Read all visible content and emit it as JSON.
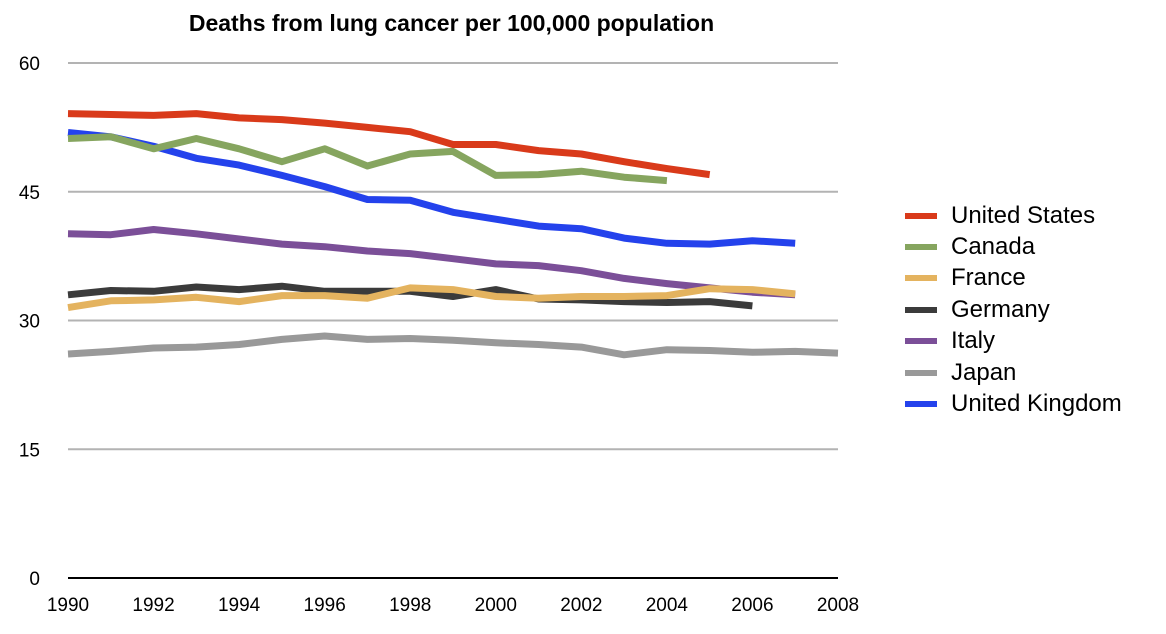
{
  "chart_data": {
    "type": "line",
    "title": "Deaths from lung cancer per 100,000 population",
    "xlabel": "",
    "ylabel": "",
    "xlim": [
      1990,
      2008
    ],
    "ylim": [
      0,
      60
    ],
    "x_ticks": [
      "1990",
      "1992",
      "1994",
      "1996",
      "1998",
      "2000",
      "2002",
      "2004",
      "2006",
      "2008"
    ],
    "y_ticks": [
      "0",
      "15",
      "30",
      "45",
      "60"
    ],
    "grid": true,
    "legend_position": "right",
    "series": [
      {
        "name": "United States",
        "color": "#d93a1a",
        "x": [
          1990,
          1991,
          1992,
          1993,
          1994,
          1995,
          1996,
          1997,
          1998,
          1999,
          2000,
          2001,
          2002,
          2003,
          2004,
          2005
        ],
        "y": [
          54.1,
          54.0,
          53.9,
          54.1,
          53.6,
          53.4,
          53.0,
          52.5,
          52.0,
          50.5,
          50.5,
          49.8,
          49.4,
          48.5,
          47.7,
          47.0
        ]
      },
      {
        "name": "Canada",
        "color": "#86a55f",
        "x": [
          1990,
          1991,
          1992,
          1993,
          1994,
          1995,
          1996,
          1997,
          1998,
          1999,
          2000,
          2001,
          2002,
          2003,
          2004
        ],
        "y": [
          51.2,
          51.4,
          50.0,
          51.2,
          50.0,
          48.5,
          50.0,
          48.0,
          49.4,
          49.7,
          46.9,
          47.0,
          47.4,
          46.7,
          46.3
        ]
      },
      {
        "name": "France",
        "color": "#e4b35f",
        "x": [
          1990,
          1991,
          1992,
          1993,
          1994,
          1995,
          1996,
          1997,
          1998,
          1999,
          2000,
          2001,
          2002,
          2003,
          2004,
          2005,
          2006,
          2007
        ],
        "y": [
          31.5,
          32.3,
          32.4,
          32.7,
          32.2,
          32.9,
          32.9,
          32.6,
          33.8,
          33.6,
          32.8,
          32.6,
          32.8,
          32.8,
          32.9,
          33.7,
          33.6,
          33.1
        ]
      },
      {
        "name": "Germany",
        "color": "#3b3b3b",
        "x": [
          1990,
          1991,
          1992,
          1993,
          1994,
          1995,
          1996,
          1997,
          1998,
          1999,
          2000,
          2001,
          2002,
          2003,
          2004,
          2005,
          2006
        ],
        "y": [
          33.0,
          33.5,
          33.4,
          33.9,
          33.6,
          34.0,
          33.4,
          33.4,
          33.4,
          32.8,
          33.6,
          32.5,
          32.4,
          32.2,
          32.1,
          32.2,
          31.7
        ]
      },
      {
        "name": "Italy",
        "color": "#7b4f98",
        "x": [
          1990,
          1991,
          1992,
          1993,
          1994,
          1995,
          1996,
          1997,
          1998,
          1999,
          2000,
          2001,
          2002,
          2003,
          2004,
          2005,
          2006,
          2007
        ],
        "y": [
          40.1,
          40.0,
          40.6,
          40.1,
          39.5,
          38.9,
          38.6,
          38.1,
          37.8,
          37.2,
          36.6,
          36.4,
          35.8,
          34.9,
          34.3,
          33.8,
          33.3,
          33.0
        ]
      },
      {
        "name": "Japan",
        "color": "#999999",
        "x": [
          1990,
          1991,
          1992,
          1993,
          1994,
          1995,
          1996,
          1997,
          1998,
          1999,
          2000,
          2001,
          2002,
          2003,
          2004,
          2005,
          2006,
          2007,
          2008
        ],
        "y": [
          26.1,
          26.4,
          26.8,
          26.9,
          27.2,
          27.8,
          28.2,
          27.8,
          27.9,
          27.7,
          27.4,
          27.2,
          26.9,
          26.0,
          26.6,
          26.5,
          26.3,
          26.4,
          26.2
        ]
      },
      {
        "name": "United Kingdom",
        "color": "#2442ec",
        "x": [
          1990,
          1991,
          1992,
          1993,
          1994,
          1995,
          1996,
          1997,
          1998,
          1999,
          2000,
          2001,
          2002,
          2003,
          2004,
          2005,
          2006,
          2007
        ],
        "y": [
          51.9,
          51.4,
          50.3,
          48.9,
          48.1,
          46.9,
          45.6,
          44.1,
          44.0,
          42.6,
          41.8,
          41.0,
          40.7,
          39.6,
          39.0,
          38.9,
          39.3,
          39.0
        ]
      }
    ]
  }
}
